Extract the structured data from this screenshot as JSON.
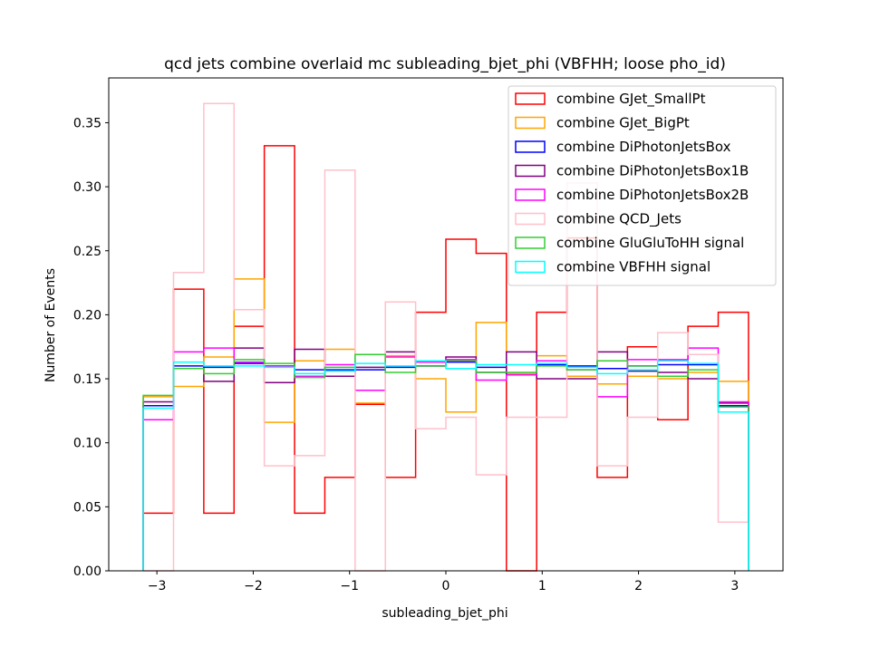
{
  "chart_data": {
    "type": "step-histogram",
    "title": "qcd jets combine overlaid mc subleading_bjet_phi (VBFHH; loose pho_id)",
    "xlabel": "subleading_bjet_phi",
    "ylabel": "Number of Events",
    "xlim": [
      -3.5,
      3.5
    ],
    "ylim": [
      0.0,
      0.385
    ],
    "xticks": [
      -3,
      -2,
      -1,
      0,
      1,
      2,
      3
    ],
    "xtick_labels": [
      "−3",
      "−2",
      "−1",
      "0",
      "1",
      "2",
      "3"
    ],
    "yticks": [
      0.0,
      0.05,
      0.1,
      0.15,
      0.2,
      0.25,
      0.3,
      0.35
    ],
    "ytick_labels": [
      "0.00",
      "0.05",
      "0.10",
      "0.15",
      "0.20",
      "0.25",
      "0.30",
      "0.35"
    ],
    "bin_edges": [
      -3.1416,
      -2.8274,
      -2.5133,
      -2.1991,
      -1.885,
      -1.5708,
      -1.2566,
      -0.9425,
      -0.6283,
      -0.3142,
      0.0,
      0.3142,
      0.6283,
      0.9425,
      1.2566,
      1.5708,
      1.885,
      2.1991,
      2.5133,
      2.8274,
      3.1416
    ],
    "legend_position": "top-right",
    "grid": false,
    "series": [
      {
        "name": "combine GJet_SmallPt",
        "color": "#ff0000",
        "values": [
          0.045,
          0.22,
          0.045,
          0.191,
          0.332,
          0.045,
          0.073,
          0.13,
          0.073,
          0.202,
          0.259,
          0.248,
          0.0,
          0.202,
          0.26,
          0.073,
          0.175,
          0.118,
          0.191,
          0.202
        ]
      },
      {
        "name": "combine GJet_BigPt",
        "color": "#ffa500",
        "values": [
          0.136,
          0.144,
          0.167,
          0.228,
          0.116,
          0.164,
          0.173,
          0.131,
          0.168,
          0.15,
          0.124,
          0.194,
          0.154,
          0.168,
          0.152,
          0.146,
          0.152,
          0.15,
          0.155,
          0.148
        ]
      },
      {
        "name": "combine DiPhotonJetsBox",
        "color": "#0000ff",
        "values": [
          0.129,
          0.16,
          0.159,
          0.162,
          0.16,
          0.157,
          0.157,
          0.157,
          0.159,
          0.16,
          0.163,
          0.159,
          0.153,
          0.161,
          0.16,
          0.158,
          0.16,
          0.161,
          0.161,
          0.129
        ]
      },
      {
        "name": "combine DiPhotonJetsBox1B",
        "color": "#800080",
        "values": [
          0.132,
          0.158,
          0.148,
          0.174,
          0.147,
          0.173,
          0.152,
          0.159,
          0.171,
          0.16,
          0.167,
          0.155,
          0.171,
          0.15,
          0.15,
          0.171,
          0.156,
          0.155,
          0.15,
          0.131
        ]
      },
      {
        "name": "combine DiPhotonJetsBox2B",
        "color": "#ff00ff",
        "values": [
          0.118,
          0.171,
          0.174,
          0.163,
          0.16,
          0.152,
          0.161,
          0.141,
          0.167,
          0.163,
          0.165,
          0.149,
          0.153,
          0.164,
          0.157,
          0.136,
          0.165,
          0.165,
          0.174,
          0.132
        ]
      },
      {
        "name": "combine QCD_Jets",
        "color": "#ffc0cb",
        "values": [
          0.0,
          0.233,
          0.365,
          0.204,
          0.082,
          0.09,
          0.313,
          0.0,
          0.21,
          0.111,
          0.12,
          0.075,
          0.12,
          0.12,
          0.303,
          0.082,
          0.12,
          0.186,
          0.169,
          0.038
        ]
      },
      {
        "name": "combine GluGluToHH signal",
        "color": "#32cd32",
        "values": [
          0.137,
          0.158,
          0.154,
          0.165,
          0.162,
          0.151,
          0.159,
          0.169,
          0.155,
          0.16,
          0.164,
          0.155,
          0.155,
          0.16,
          0.157,
          0.164,
          0.16,
          0.152,
          0.157,
          0.128
        ]
      },
      {
        "name": "combine VBFHH signal",
        "color": "#00ffff",
        "values": [
          0.127,
          0.163,
          0.16,
          0.16,
          0.159,
          0.154,
          0.156,
          0.162,
          0.16,
          0.164,
          0.158,
          0.161,
          0.161,
          0.162,
          0.159,
          0.154,
          0.157,
          0.164,
          0.162,
          0.124
        ]
      }
    ]
  }
}
